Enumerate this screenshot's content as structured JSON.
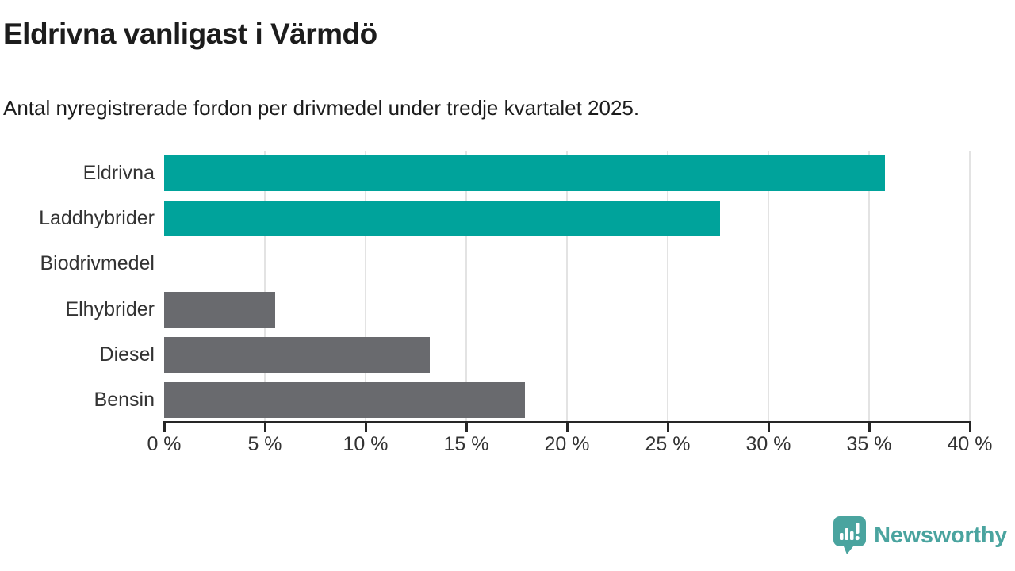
{
  "header": {
    "title": "Eldrivna vanligast i Värmdö",
    "subtitle": "Antal nyregistrerade fordon per drivmedel under tredje kvartalet 2025."
  },
  "chart_data": {
    "type": "bar",
    "orientation": "horizontal",
    "title": "Eldrivna vanligast i Värmdö",
    "subtitle": "Antal nyregistrerade fordon per drivmedel under tredje kvartalet 2025.",
    "categories": [
      "Eldrivna",
      "Laddhybrider",
      "Biodrivmedel",
      "Elhybrider",
      "Diesel",
      "Bensin"
    ],
    "values": [
      35.8,
      27.6,
      0,
      5.5,
      13.2,
      17.9
    ],
    "unit": "%",
    "bar_colors": [
      "#00a39b",
      "#00a39b",
      "#696a6e",
      "#696a6e",
      "#696a6e",
      "#696a6e"
    ],
    "highlight_color": "#00a39b",
    "default_color": "#696a6e",
    "xlim": [
      0,
      40
    ],
    "x_tick_values": [
      0,
      5,
      10,
      15,
      20,
      25,
      30,
      35,
      40
    ],
    "x_tick_labels": [
      "0 %",
      "5 %",
      "10 %",
      "15 %",
      "20 %",
      "25 %",
      "30 %",
      "35 %",
      "40 %"
    ],
    "xlabel": "",
    "ylabel": "",
    "grid": true,
    "legend": false
  },
  "footer": {
    "brand": "Newsworthy",
    "brand_color": "#4aa49f"
  },
  "colors": {
    "background": "#ffffff",
    "title_text": "#1c1c1c",
    "axis_text": "#333333",
    "axis_line": "#262626",
    "gridline": "#e3e3e3"
  },
  "icons": {
    "brand_logo": "newsworthy-speech-bubble-barchart-icon"
  }
}
